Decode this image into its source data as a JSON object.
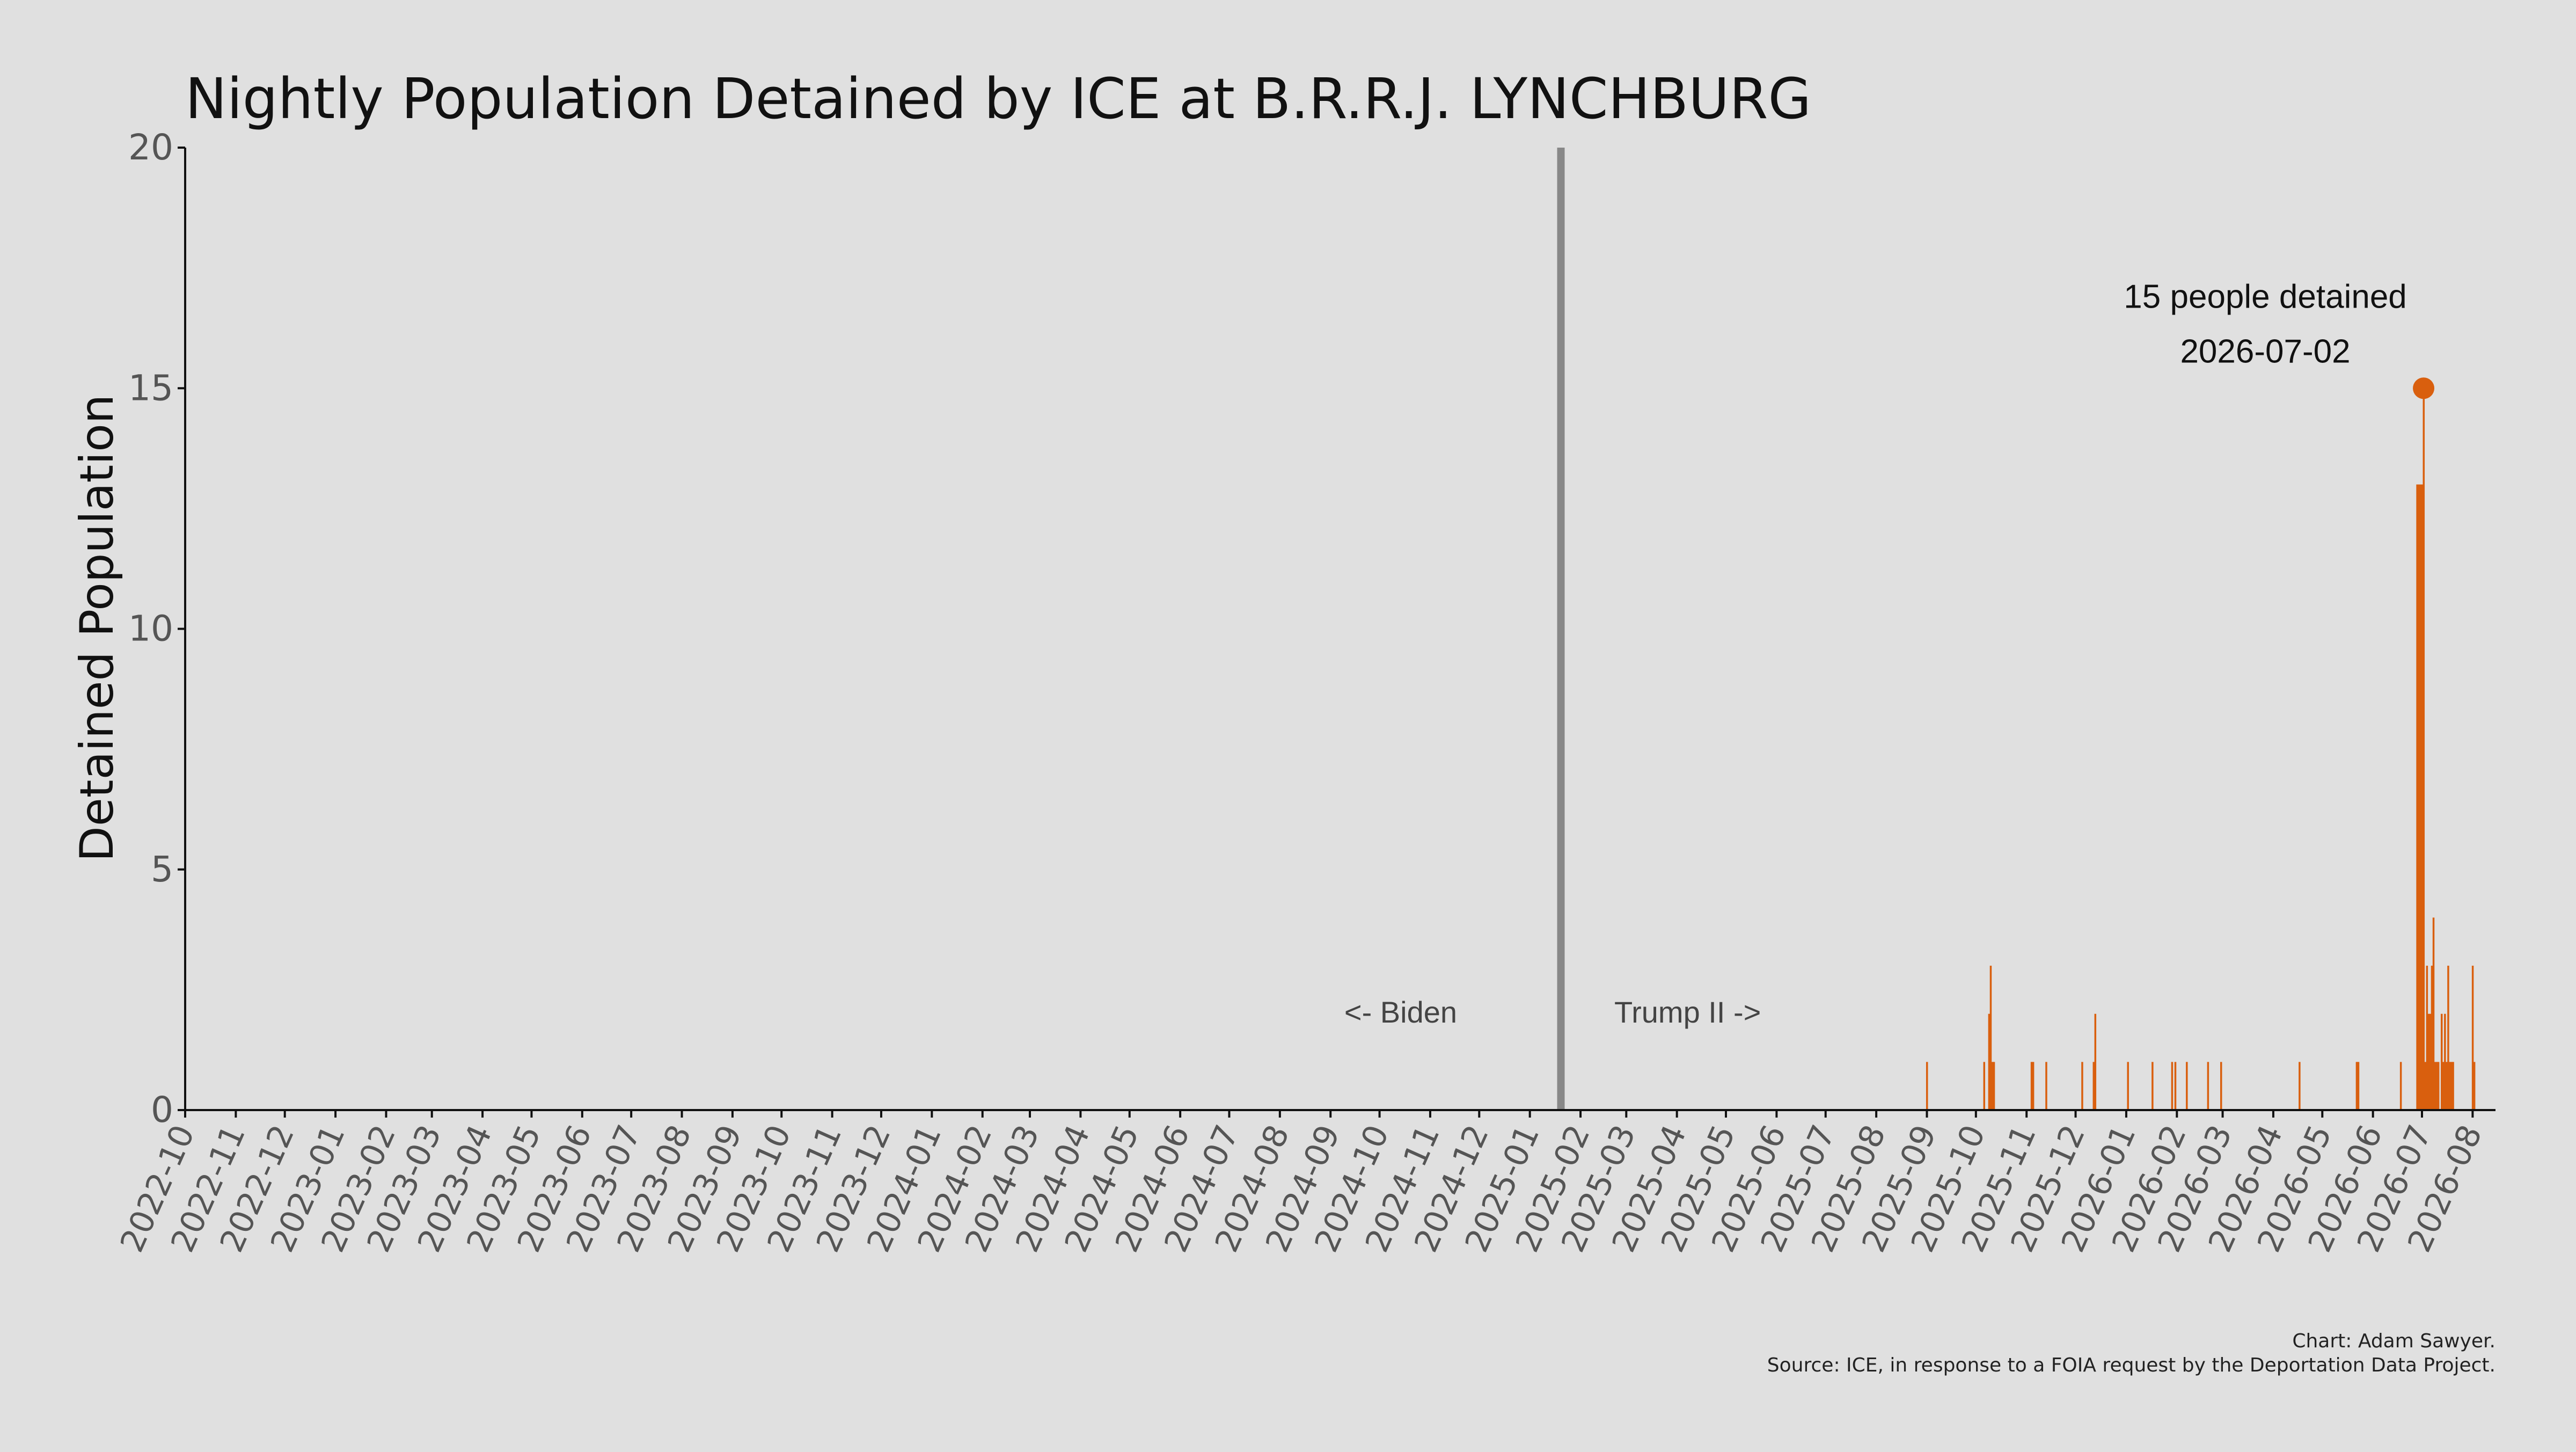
{
  "chart_data": {
    "type": "bar",
    "title": "Nightly Population Detained by ICE at B.R.R.J. LYNCHBURG",
    "xlabel": "",
    "ylabel": "Detained Population",
    "ylim": [
      0,
      20
    ],
    "yticks": [
      0,
      5,
      10,
      15,
      20
    ],
    "xlim": [
      "2022-10-01",
      "2026-08-15"
    ],
    "xtick_labels": [
      "2022-10",
      "2022-11",
      "2022-12",
      "2023-01",
      "2023-02",
      "2023-03",
      "2023-04",
      "2023-05",
      "2023-06",
      "2023-07",
      "2023-08",
      "2023-09",
      "2023-10",
      "2023-11",
      "2023-12",
      "2024-01",
      "2024-02",
      "2024-03",
      "2024-04",
      "2024-05",
      "2024-06",
      "2024-07",
      "2024-08",
      "2024-09",
      "2024-10",
      "2024-11",
      "2024-12",
      "2025-01",
      "2025-02",
      "2025-03",
      "2025-04",
      "2025-05",
      "2025-06",
      "2025-07",
      "2025-08",
      "2025-09",
      "2025-10",
      "2025-11",
      "2025-12",
      "2026-01",
      "2026-02",
      "2026-03",
      "2026-04",
      "2026-05",
      "2026-06",
      "2026-07",
      "2026-08"
    ],
    "grid": false,
    "bar_color": "#d95f0e",
    "points": [
      {
        "date": "2025-09-01",
        "value": 1
      },
      {
        "date": "2025-10-06",
        "value": 1
      },
      {
        "date": "2025-10-09",
        "value": 2
      },
      {
        "date": "2025-10-10",
        "value": 3
      },
      {
        "date": "2025-10-11",
        "value": 1
      },
      {
        "date": "2025-10-12",
        "value": 1
      },
      {
        "date": "2025-11-04",
        "value": 1
      },
      {
        "date": "2025-11-05",
        "value": 1
      },
      {
        "date": "2025-11-13",
        "value": 1
      },
      {
        "date": "2025-12-05",
        "value": 1
      },
      {
        "date": "2025-12-12",
        "value": 1
      },
      {
        "date": "2025-12-13",
        "value": 2
      },
      {
        "date": "2026-01-02",
        "value": 1
      },
      {
        "date": "2026-01-17",
        "value": 1
      },
      {
        "date": "2026-01-29",
        "value": 1
      },
      {
        "date": "2026-01-31",
        "value": 1
      },
      {
        "date": "2026-02-07",
        "value": 1
      },
      {
        "date": "2026-02-20",
        "value": 1
      },
      {
        "date": "2026-02-28",
        "value": 1
      },
      {
        "date": "2026-04-17",
        "value": 1
      },
      {
        "date": "2026-05-22",
        "value": 1
      },
      {
        "date": "2026-05-23",
        "value": 1
      },
      {
        "date": "2026-06-18",
        "value": 1
      },
      {
        "date": "2026-06-28",
        "value": 13
      },
      {
        "date": "2026-06-29",
        "value": 13
      },
      {
        "date": "2026-06-30",
        "value": 13
      },
      {
        "date": "2026-07-01",
        "value": 13
      },
      {
        "date": "2026-07-02",
        "value": 15
      },
      {
        "date": "2026-07-03",
        "value": 1
      },
      {
        "date": "2026-07-04",
        "value": 3
      },
      {
        "date": "2026-07-05",
        "value": 2
      },
      {
        "date": "2026-07-06",
        "value": 2
      },
      {
        "date": "2026-07-07",
        "value": 3
      },
      {
        "date": "2026-07-08",
        "value": 4
      },
      {
        "date": "2026-07-09",
        "value": 1
      },
      {
        "date": "2026-07-10",
        "value": 1
      },
      {
        "date": "2026-07-11",
        "value": 1
      },
      {
        "date": "2026-07-13",
        "value": 2
      },
      {
        "date": "2026-07-14",
        "value": 1
      },
      {
        "date": "2026-07-15",
        "value": 2
      },
      {
        "date": "2026-07-16",
        "value": 1
      },
      {
        "date": "2026-07-17",
        "value": 3
      },
      {
        "date": "2026-07-18",
        "value": 1
      },
      {
        "date": "2026-07-19",
        "value": 1
      },
      {
        "date": "2026-07-20",
        "value": 1
      },
      {
        "date": "2026-08-01",
        "value": 3
      },
      {
        "date": "2026-08-02",
        "value": 1
      }
    ],
    "peak": {
      "date": "2026-07-02",
      "value": 15,
      "label_line1": "15 people detained",
      "label_line2": "2026-07-02"
    },
    "divider": {
      "date": "2025-01-20",
      "color": "#888888"
    },
    "era_left": "<- Biden",
    "era_right": "Trump II ->"
  },
  "caption": {
    "line1": "Chart: Adam Sawyer.",
    "line2": "Source: ICE, in response to a FOIA request by the Deportation Data Project."
  }
}
